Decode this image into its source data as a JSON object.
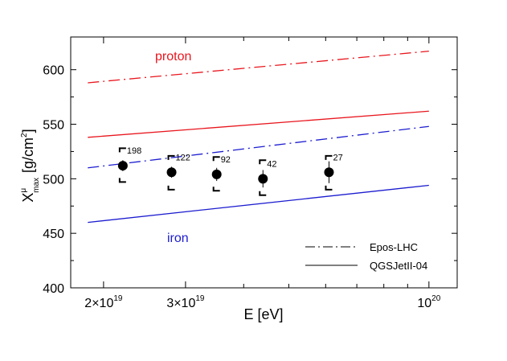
{
  "chart_data": {
    "type": "line",
    "xlabel": "E [eV]",
    "ylabel": {
      "base": "X",
      "sup": "μ",
      "sub": "max",
      "unit_pre": "[g/cm",
      "unit_sup": "2",
      "unit_post": "]"
    },
    "xscale": "log",
    "xlim": [
      1.7e+19,
      1.15e+20
    ],
    "ylim": [
      400,
      630
    ],
    "yticks": [
      400,
      450,
      500,
      550,
      600
    ],
    "ytick_labels": [
      "400",
      "450",
      "500",
      "550",
      "600"
    ],
    "xticks_labeled": [
      {
        "value": 2e+19,
        "mantissa": "2×10",
        "exp": "19"
      },
      {
        "value": 3e+19,
        "mantissa": "3×10",
        "exp": "19"
      },
      {
        "value": 1e+20,
        "mantissa": "10",
        "exp": "20"
      }
    ],
    "xticks_minor": [
      4e+19,
      5e+19,
      6e+19,
      7e+19,
      8e+19,
      9e+19
    ],
    "series": [
      {
        "model": "Epos-LHC",
        "primary": "proton",
        "style": "dashdot",
        "color": "#e8161e",
        "x": [
          1.85e+19,
          1e+20
        ],
        "y": [
          588,
          617
        ]
      },
      {
        "model": "QGSJetII-04",
        "primary": "proton",
        "style": "solid",
        "color": "#e8161e",
        "x": [
          1.85e+19,
          1e+20
        ],
        "y": [
          538,
          562
        ]
      },
      {
        "model": "Epos-LHC",
        "primary": "iron",
        "style": "dashdot",
        "color": "#1c1cd0",
        "x": [
          1.85e+19,
          1e+20
        ],
        "y": [
          510,
          548
        ]
      },
      {
        "model": "QGSJetII-04",
        "primary": "iron",
        "style": "solid",
        "color": "#1c1cd0",
        "x": [
          1.85e+19,
          1e+20
        ],
        "y": [
          460,
          494
        ]
      }
    ],
    "data_points": [
      {
        "x": 2.2e+19,
        "y": 512,
        "stat_err": 5,
        "sys_lo": 497,
        "sys_hi": 528,
        "count": "198"
      },
      {
        "x": 2.8e+19,
        "y": 506,
        "stat_err": 5,
        "sys_lo": 490,
        "sys_hi": 521,
        "count": "122"
      },
      {
        "x": 3.5e+19,
        "y": 504,
        "stat_err": 6,
        "sys_lo": 489,
        "sys_hi": 520,
        "count": "92"
      },
      {
        "x": 4.4e+19,
        "y": 500,
        "stat_err": 8,
        "sys_lo": 485,
        "sys_hi": 517,
        "count": "42"
      },
      {
        "x": 6.1e+19,
        "y": 506,
        "stat_err": 10,
        "sys_lo": 490,
        "sys_hi": 521,
        "count": "27"
      }
    ],
    "annotations": [
      {
        "text": "proton",
        "color": "#e8161e"
      },
      {
        "text": "iron",
        "color": "#1c1cd0"
      }
    ],
    "legend": {
      "placement": "bottom-right",
      "entries": [
        {
          "label": "Epos-LHC",
          "style": "dashdot"
        },
        {
          "label": "QGSJetII-04",
          "style": "solid"
        }
      ]
    },
    "grid": false
  }
}
